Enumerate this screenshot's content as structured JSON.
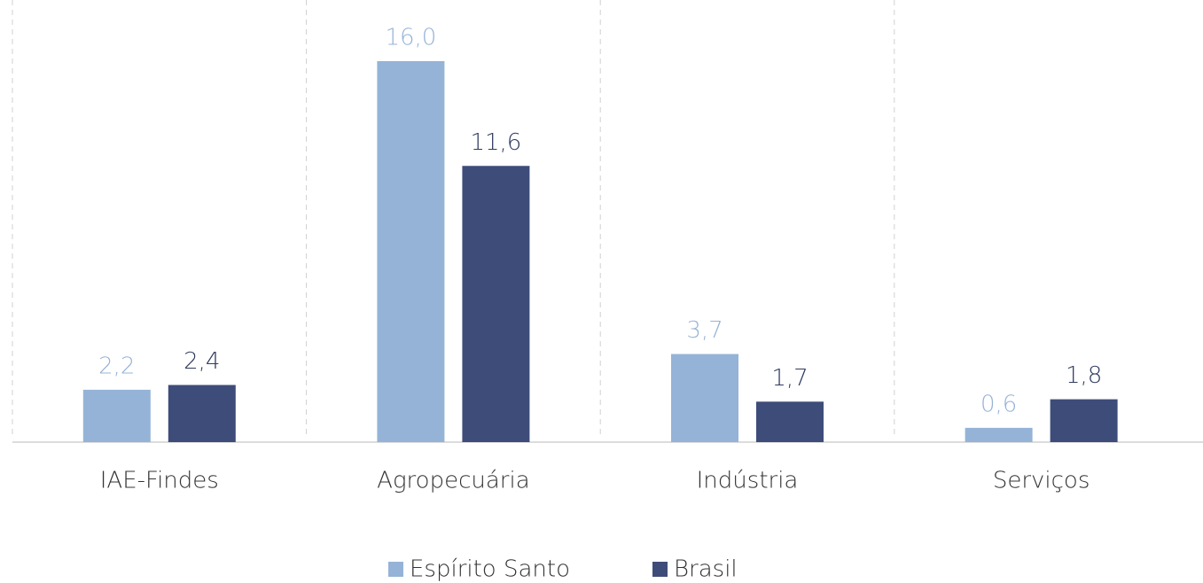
{
  "chart_data": {
    "type": "bar",
    "categories": [
      "IAE-Findes",
      "Agropecuária",
      "Indústria",
      "Serviços"
    ],
    "series": [
      {
        "name": "Espírito Santo",
        "color": "#95b3d7",
        "values": [
          2.2,
          16.0,
          3.7,
          0.6
        ],
        "value_labels": [
          "2,2",
          "16,0",
          "3,7",
          "0,6"
        ]
      },
      {
        "name": "Brasil",
        "color": "#3e4c7a",
        "values": [
          2.4,
          11.6,
          1.7,
          1.8
        ],
        "value_labels": [
          "2,4",
          "11,6",
          "1,7",
          "1,8"
        ]
      }
    ],
    "legend": "bottom"
  }
}
